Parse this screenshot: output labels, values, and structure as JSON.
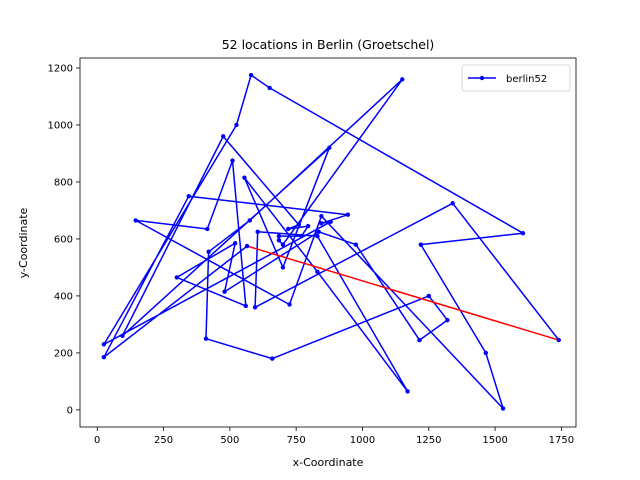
{
  "chart_data": {
    "type": "line",
    "title": "52 locations in Berlin (Groetschel)",
    "xlabel": "x-Coordinate",
    "ylabel": "y-Coordinate",
    "xlim": [
      -65,
      1805
    ],
    "ylim": [
      -60,
      1235
    ],
    "x_ticks": [
      0,
      250,
      500,
      750,
      1000,
      1250,
      1500,
      1750
    ],
    "y_ticks": [
      0,
      200,
      400,
      600,
      800,
      1000,
      1200
    ],
    "grid": false,
    "legend": {
      "placement": "top-right",
      "entries": [
        "berlin52"
      ]
    },
    "colors": {
      "tour": "#0000ff",
      "closing": "#ff0000"
    },
    "series": [
      {
        "name": "berlin52",
        "x": [
          565,
          25,
          345,
          945,
          845,
          880,
          25,
          525,
          580,
          650,
          1605,
          1220,
          1465,
          1530,
          845,
          725,
          145,
          415,
          510,
          560,
          300,
          520,
          480,
          835,
          975,
          1215,
          1320,
          1250,
          660,
          410,
          420,
          575,
          1150,
          700,
          685,
          685,
          770,
          795,
          720,
          760,
          475,
          95,
          875,
          700,
          555,
          830,
          1170,
          830,
          605,
          595,
          1340,
          1740
        ],
        "y": [
          575,
          185,
          750,
          685,
          655,
          660,
          230,
          1000,
          1175,
          1130,
          620,
          580,
          200,
          5,
          680,
          370,
          665,
          635,
          875,
          365,
          465,
          585,
          415,
          625,
          580,
          245,
          315,
          400,
          180,
          250,
          555,
          665,
          1160,
          580,
          595,
          610,
          610,
          645,
          635,
          650,
          960,
          260,
          920,
          500,
          815,
          485,
          65,
          610,
          625,
          360,
          725,
          245
        ]
      }
    ],
    "closing_segment": {
      "x": [
        1740,
        565
      ],
      "y": [
        245,
        575
      ]
    }
  }
}
